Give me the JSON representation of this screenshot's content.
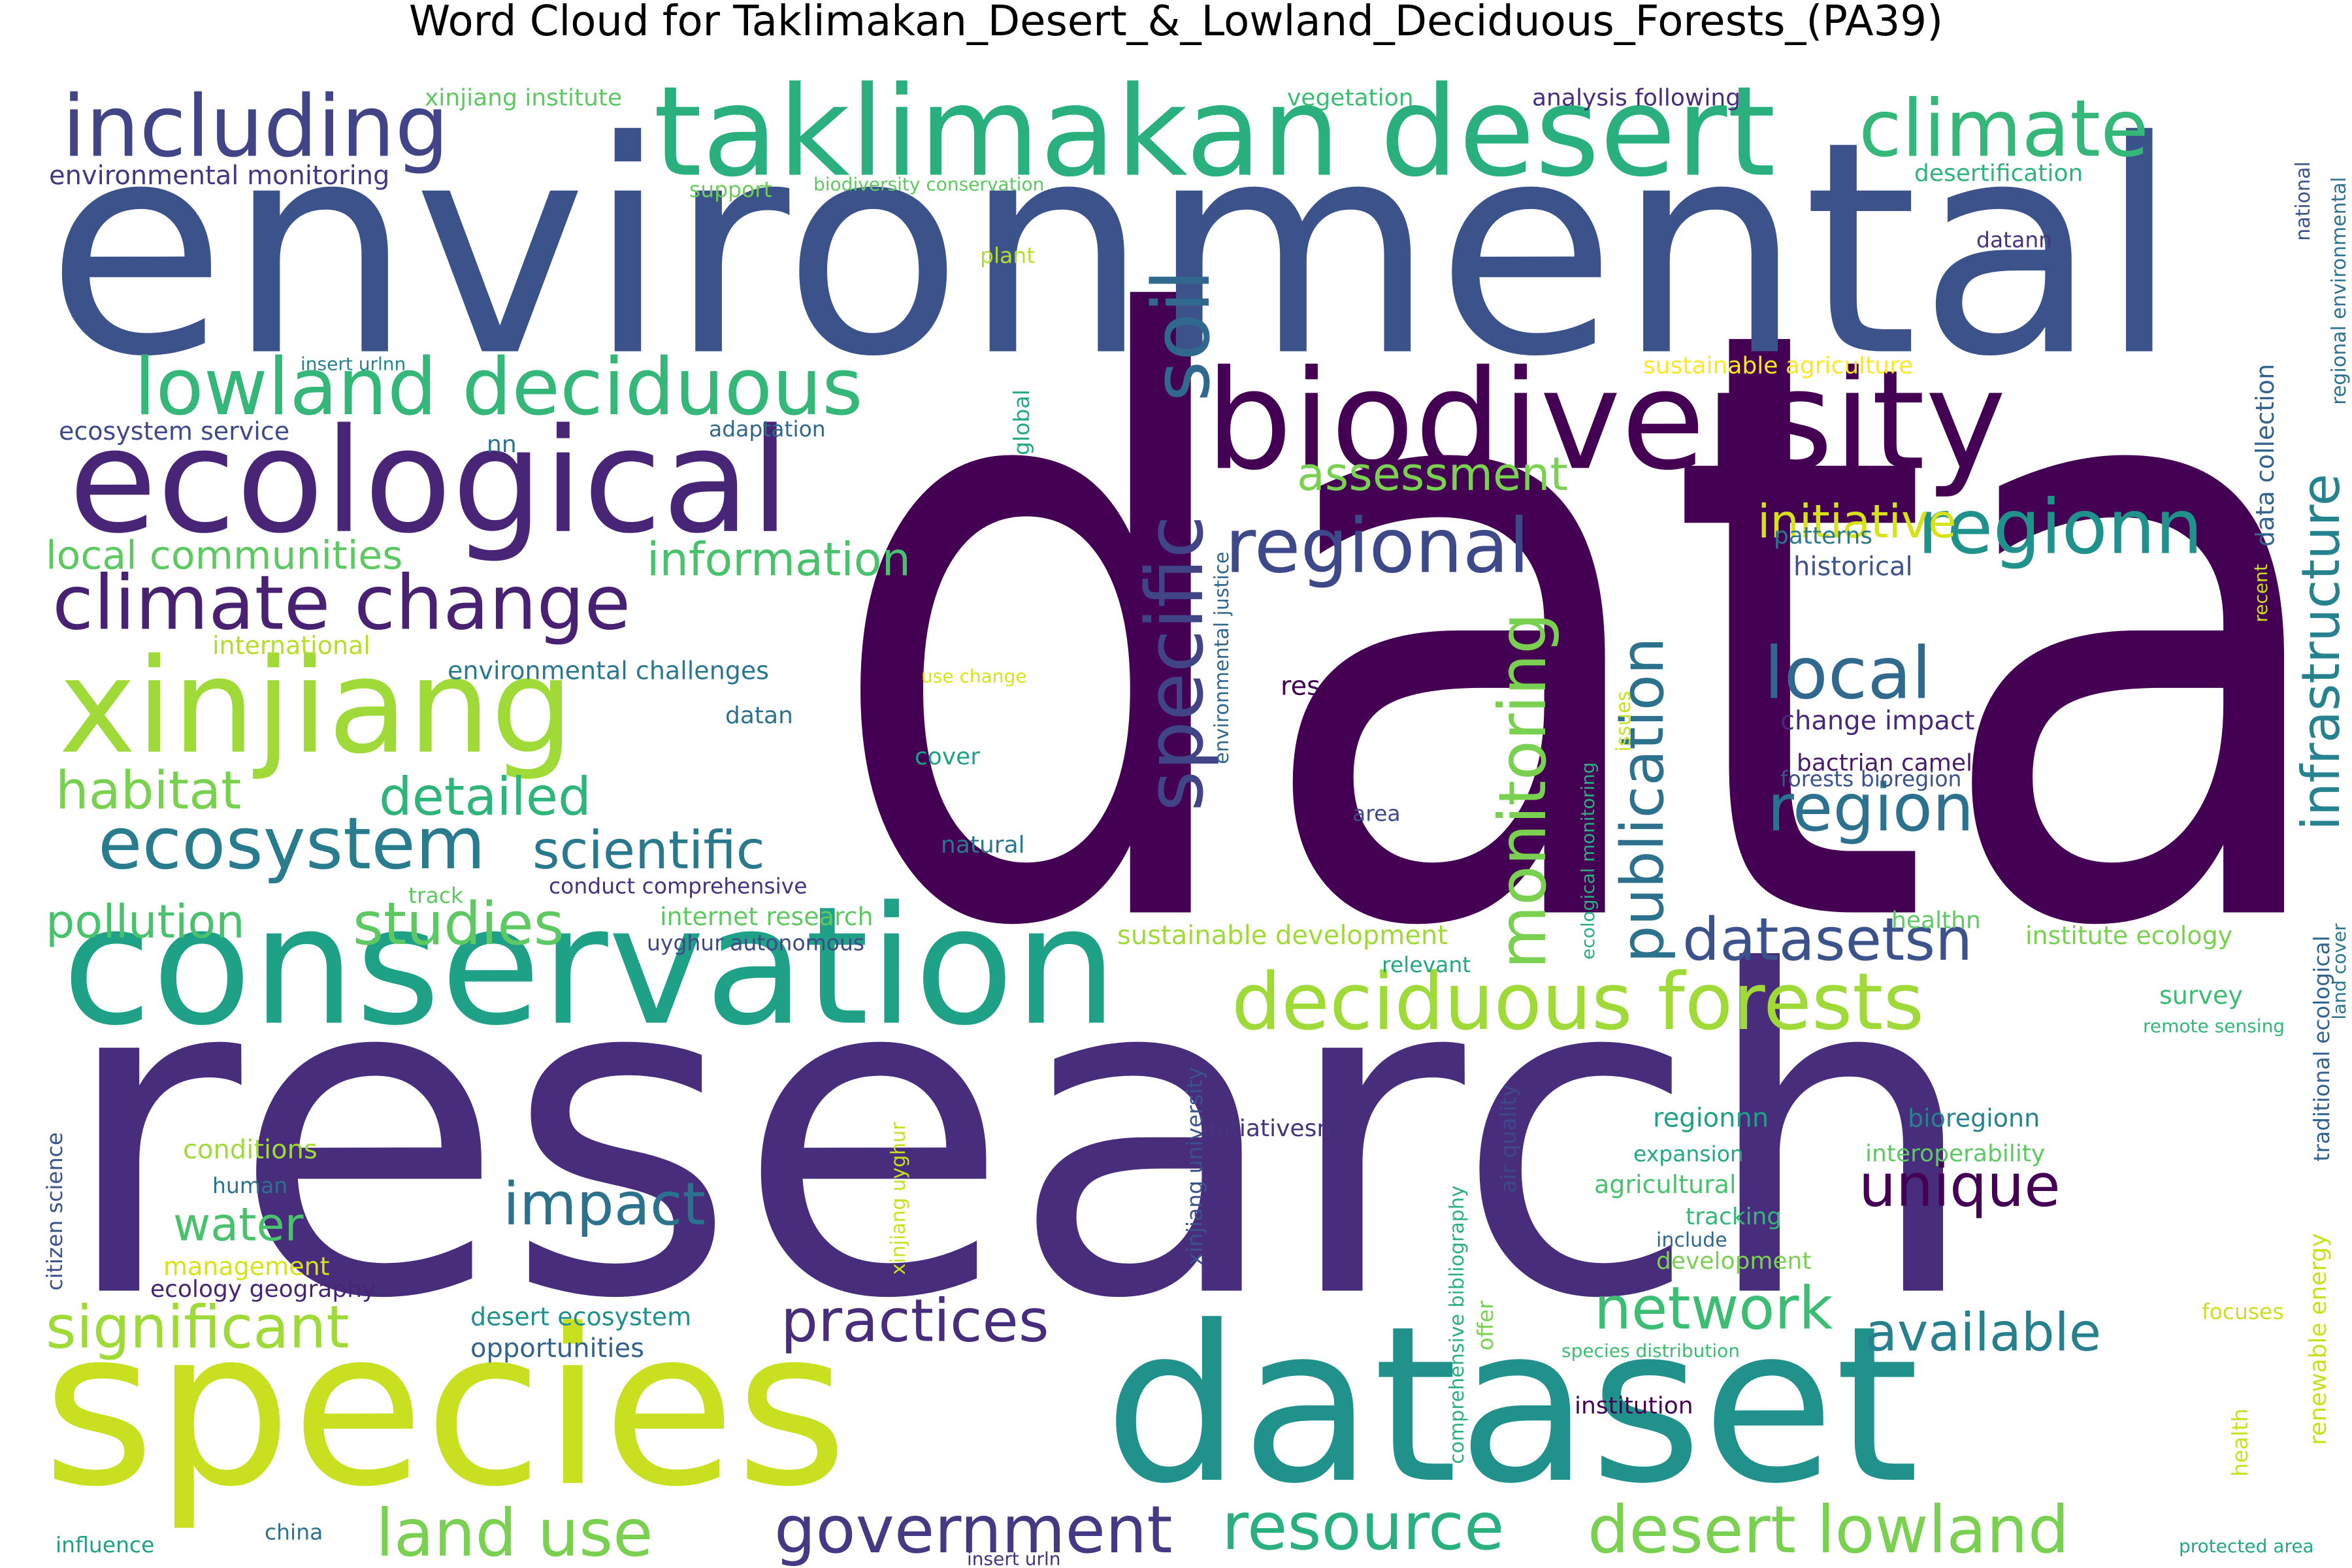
{
  "title": "Word Cloud for Taklimakan_Desert_&_Lowland_Deciduous_Forests_(PA39)",
  "words": [
    {
      "text": "data",
      "color": "#440154"
    },
    {
      "text": "research",
      "color": "#472d7b"
    },
    {
      "text": "environmental",
      "color": "#3b528b"
    },
    {
      "text": "species",
      "color": "#c8e020"
    },
    {
      "text": "dataset",
      "color": "#21918c"
    },
    {
      "text": "conservation",
      "color": "#1fa187"
    },
    {
      "text": "taklimakan desert",
      "color": "#2ab07f"
    },
    {
      "text": "biodiversity",
      "color": "#440154"
    },
    {
      "text": "ecological",
      "color": "#482576"
    },
    {
      "text": "including",
      "color": "#414487"
    },
    {
      "text": "climate",
      "color": "#35b779"
    },
    {
      "text": "xinjiang",
      "color": "#a0da39"
    },
    {
      "text": "lowland deciduous",
      "color": "#35b779"
    },
    {
      "text": "deciduous forests",
      "color": "#a0da39"
    },
    {
      "text": "climate change",
      "color": "#482173"
    },
    {
      "text": "ecosystem",
      "color": "#287c8e"
    },
    {
      "text": "regional",
      "color": "#3e4989"
    },
    {
      "text": "regionn",
      "color": "#21918c"
    },
    {
      "text": "soil",
      "color": "#31688e"
    },
    {
      "text": "specific",
      "color": "#414487"
    },
    {
      "text": "monitoring",
      "color": "#7ad151"
    },
    {
      "text": "infrastructure",
      "color": "#26828e"
    },
    {
      "text": "publication",
      "color": "#2c728e"
    },
    {
      "text": "local",
      "color": "#31688e"
    },
    {
      "text": "region",
      "color": "#2c728e"
    },
    {
      "text": "datasetsn",
      "color": "#3b528b"
    },
    {
      "text": "unique",
      "color": "#440154"
    },
    {
      "text": "impact",
      "color": "#2c728e"
    },
    {
      "text": "practices",
      "color": "#472d7b"
    },
    {
      "text": "government",
      "color": "#443983"
    },
    {
      "text": "resource",
      "color": "#2ab07f"
    },
    {
      "text": "desert lowland",
      "color": "#7ad151"
    },
    {
      "text": "land use",
      "color": "#7ad151"
    },
    {
      "text": "significant",
      "color": "#a0da39"
    },
    {
      "text": "network",
      "color": "#3dbc74"
    },
    {
      "text": "available",
      "color": "#27808e"
    },
    {
      "text": "studies",
      "color": "#5ec962"
    },
    {
      "text": "scientific",
      "color": "#2a788e"
    },
    {
      "text": "pollution",
      "color": "#4ac16d"
    },
    {
      "text": "habitat",
      "color": "#7ad151"
    },
    {
      "text": "detailed",
      "color": "#2fb47c"
    },
    {
      "text": "assessment",
      "color": "#7ad151"
    },
    {
      "text": "initiative",
      "color": "#d8e219"
    },
    {
      "text": "information",
      "color": "#4ac16d"
    },
    {
      "text": "local communities",
      "color": "#5ec962"
    },
    {
      "text": "water",
      "color": "#4ac16d"
    },
    {
      "text": "xinjiang institute",
      "color": "#5ec962"
    },
    {
      "text": "vegetation",
      "color": "#3dbc74"
    },
    {
      "text": "analysis following",
      "color": "#472c7a"
    },
    {
      "text": "environmental monitoring",
      "color": "#453781"
    },
    {
      "text": "support",
      "color": "#6ccd5a"
    },
    {
      "text": "biodiversity conservation",
      "color": "#5ec962"
    },
    {
      "text": "desertification",
      "color": "#2fb47c"
    },
    {
      "text": "national",
      "color": "#3b528b"
    },
    {
      "text": "regional environmental",
      "color": "#2c728e"
    },
    {
      "text": "plant",
      "color": "#b5de2b"
    },
    {
      "text": "datann",
      "color": "#46337e"
    },
    {
      "text": "insert urlnn",
      "color": "#26828e"
    },
    {
      "text": "sustainable agriculture",
      "color": "#fde725"
    },
    {
      "text": "ecosystem service",
      "color": "#3e4989"
    },
    {
      "text": "nn",
      "color": "#2c728e"
    },
    {
      "text": "adaptation",
      "color": "#31688e"
    },
    {
      "text": "global",
      "color": "#22a884"
    },
    {
      "text": "data collection",
      "color": "#33638d"
    },
    {
      "text": "patterns",
      "color": "#2a788e"
    },
    {
      "text": "historical",
      "color": "#3b528b"
    },
    {
      "text": "recent",
      "color": "#c8e020"
    },
    {
      "text": "international",
      "color": "#b5de2b"
    },
    {
      "text": "environmental challenges",
      "color": "#2a788e"
    },
    {
      "text": "use change",
      "color": "#d8e219"
    },
    {
      "text": "researcher",
      "color": "#440154"
    },
    {
      "text": "environmental justice",
      "color": "#31688e"
    },
    {
      "text": "issues",
      "color": "#c8e020"
    },
    {
      "text": "ecological monitoring",
      "color": "#2ab07f"
    },
    {
      "text": "change impact",
      "color": "#482878"
    },
    {
      "text": "bactrian camel",
      "color": "#481b6d"
    },
    {
      "text": "forests bioregion",
      "color": "#3b528b"
    },
    {
      "text": "datan",
      "color": "#2c728e"
    },
    {
      "text": "cover",
      "color": "#1fa187"
    },
    {
      "text": "area",
      "color": "#3e4989"
    },
    {
      "text": "natural",
      "color": "#2a788e"
    },
    {
      "text": "track",
      "color": "#5ec962"
    },
    {
      "text": "conduct comprehensive",
      "color": "#46327e"
    },
    {
      "text": "internet research",
      "color": "#5ec962"
    },
    {
      "text": "uyghur autonomous",
      "color": "#3e4989"
    },
    {
      "text": "sustainable development",
      "color": "#a0da39"
    },
    {
      "text": "relevant",
      "color": "#22a884"
    },
    {
      "text": "healthn",
      "color": "#5ec962"
    },
    {
      "text": "institute ecology",
      "color": "#7ad151"
    },
    {
      "text": "land cover",
      "color": "#2a788e"
    },
    {
      "text": "survey",
      "color": "#3dbc74"
    },
    {
      "text": "remote sensing",
      "color": "#35b779"
    },
    {
      "text": "traditional ecological",
      "color": "#33638d"
    },
    {
      "text": "xinjiang university",
      "color": "#3b528b"
    },
    {
      "text": "initiativesn",
      "color": "#46337e"
    },
    {
      "text": "air quality",
      "color": "#3e4989"
    },
    {
      "text": "comprehensive bibliography",
      "color": "#2ab07f"
    },
    {
      "text": "regionnn",
      "color": "#1fa187"
    },
    {
      "text": "bioregionn",
      "color": "#26828e"
    },
    {
      "text": "expansion",
      "color": "#22a884"
    },
    {
      "text": "interoperability",
      "color": "#5ec962"
    },
    {
      "text": "agricultural",
      "color": "#4ac16d"
    },
    {
      "text": "tracking",
      "color": "#35b779"
    },
    {
      "text": "include",
      "color": "#31688e"
    },
    {
      "text": "development",
      "color": "#7ad151"
    },
    {
      "text": "xinjiang uyghur",
      "color": "#c8e020"
    },
    {
      "text": "renewable energy",
      "color": "#c8e020"
    },
    {
      "text": "conditions",
      "color": "#a0da39"
    },
    {
      "text": "human",
      "color": "#2c728e"
    },
    {
      "text": "management",
      "color": "#d8e219"
    },
    {
      "text": "ecology geography",
      "color": "#482475"
    },
    {
      "text": "citizen science",
      "color": "#3b528b"
    },
    {
      "text": "desert ecosystem",
      "color": "#21918c"
    },
    {
      "text": "opportunities",
      "color": "#33638d"
    },
    {
      "text": "offer",
      "color": "#7ad151"
    },
    {
      "text": "species distribution",
      "color": "#3dbc74"
    },
    {
      "text": "institution",
      "color": "#440154"
    },
    {
      "text": "focuses",
      "color": "#c8e020"
    },
    {
      "text": "health",
      "color": "#c8e020"
    },
    {
      "text": "influence",
      "color": "#1fa187"
    },
    {
      "text": "china",
      "color": "#2c728e"
    },
    {
      "text": "insert urln",
      "color": "#46327e"
    },
    {
      "text": "protected area",
      "color": "#22a884"
    }
  ]
}
